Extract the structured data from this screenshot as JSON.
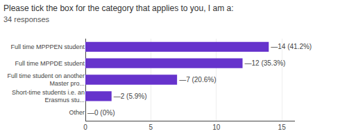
{
  "chart_data": {
    "type": "bar",
    "orientation": "horizontal",
    "title": "Please tick the box for the category that applies to you, I am a:",
    "subtitle": "34 responses",
    "categories": [
      "Full time MPPPEN student",
      "Full time MPPDE student",
      "Full time student on another\nMaster pro...",
      "Short-time students i.e. an\nErasmus stu...",
      "Other"
    ],
    "values": [
      14,
      12,
      7,
      2,
      0
    ],
    "data_labels": true,
    "value_labels": [
      "—14 (41.2%)",
      "—12 (35.3%)",
      "—7 (20.6%)",
      "—2 (5.9%)",
      "—0 (0%)"
    ],
    "color": "#6633cc",
    "xlim": [
      0,
      16
    ],
    "xticks": [
      0,
      5,
      10,
      15
    ],
    "grid": true
  }
}
